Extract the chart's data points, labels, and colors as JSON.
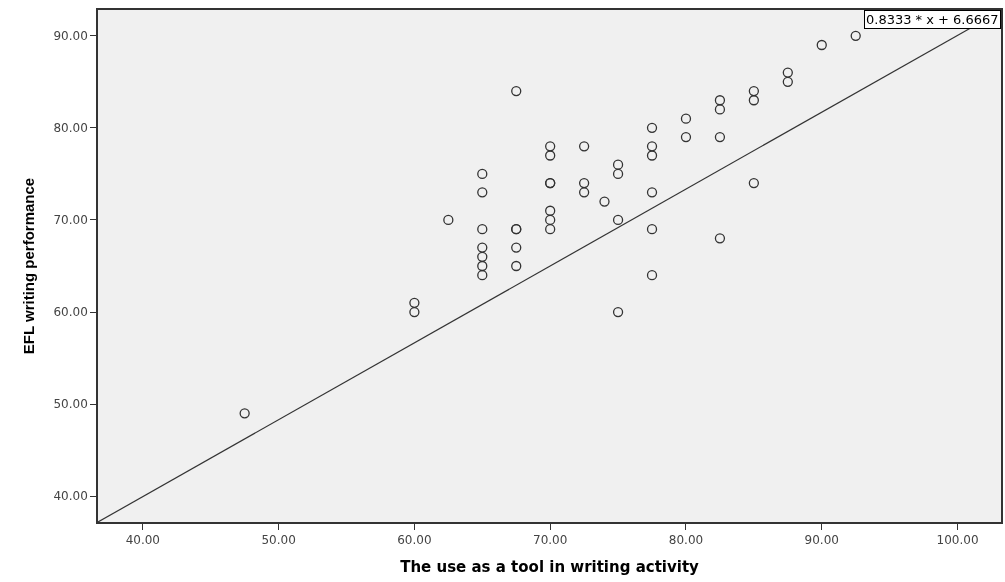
{
  "chart_data": {
    "type": "scatter",
    "xlabel": "The use as a tool in writing activity",
    "ylabel": "EFL writing performance",
    "xlim": [
      36.7,
      103.2
    ],
    "ylim": [
      37.2,
      92.8
    ],
    "xticks": [
      {
        "value": 40,
        "label": "40.00"
      },
      {
        "value": 50,
        "label": "50.00"
      },
      {
        "value": 60,
        "label": "60.00"
      },
      {
        "value": 70,
        "label": "70.00"
      },
      {
        "value": 80,
        "label": "80.00"
      },
      {
        "value": 90,
        "label": "90.00"
      },
      {
        "value": 100,
        "label": "100.00"
      }
    ],
    "yticks": [
      {
        "value": 40,
        "label": "40.00"
      },
      {
        "value": 50,
        "label": "50.00"
      },
      {
        "value": 60,
        "label": "60.00"
      },
      {
        "value": 70,
        "label": "70.00"
      },
      {
        "value": 80,
        "label": "80.00"
      },
      {
        "value": 90,
        "label": "90.00"
      }
    ],
    "grid": false,
    "legend": false,
    "marker": "circle",
    "series": [
      {
        "color": "#333333",
        "x": [
          47.5,
          60,
          60,
          62.5,
          65,
          65,
          65,
          65,
          65,
          65,
          65,
          67.5,
          67.5,
          67.5,
          67.5,
          67.5,
          70,
          70,
          70,
          70,
          70,
          70,
          70,
          72.5,
          72.5,
          72.5,
          74,
          75,
          75,
          75,
          75,
          77.5,
          77.5,
          77.5,
          77.5,
          77.5,
          77.5,
          80,
          80,
          82.5,
          82.5,
          82.5,
          82.5,
          85,
          85,
          85,
          87.5,
          87.5,
          90,
          92.5
        ],
        "values": [
          49,
          60,
          61,
          70,
          75,
          73,
          69,
          67,
          66,
          65,
          64,
          84,
          69,
          69,
          67,
          65,
          78,
          77,
          74,
          74,
          71,
          70,
          69,
          78,
          74,
          73,
          72,
          76,
          75,
          70,
          60,
          80,
          78,
          77,
          73,
          69,
          64,
          81,
          79,
          83,
          82,
          79,
          68,
          84,
          83,
          74,
          86,
          85,
          89,
          90
        ]
      },
      {
        "type": "line",
        "color": "#333333",
        "line_style": "solid",
        "marker": "none",
        "x": [
          36.7,
          100.9
        ],
        "values": [
          37.2,
          90.8
        ]
      }
    ],
    "annotations": [
      "0.8333 * x + 6.6667"
    ]
  }
}
